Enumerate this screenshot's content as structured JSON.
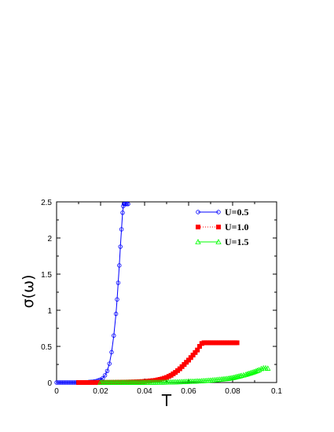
{
  "chart_data": {
    "type": "scatter",
    "title": "",
    "xlabel": "T",
    "ylabel": "σ(ω)",
    "xlim": [
      0,
      0.1
    ],
    "ylim": [
      0,
      2.5
    ],
    "xticks": [
      "0",
      "0.02",
      "0.04",
      "0.06",
      "0.08",
      "0.1"
    ],
    "yticks": [
      "0",
      "0.5",
      "1",
      "1.5",
      "2",
      "2.5"
    ],
    "legend_position": "top-right",
    "series": [
      {
        "name": "U=0.5",
        "color": "#0000ff",
        "marker": "open-circle",
        "line": "solid",
        "x": [
          0.0,
          0.002,
          0.004,
          0.006,
          0.008,
          0.01,
          0.012,
          0.014,
          0.016,
          0.018,
          0.02,
          0.021,
          0.022,
          0.023,
          0.024,
          0.025,
          0.026,
          0.027,
          0.0275,
          0.028,
          0.0285,
          0.029,
          0.0295,
          0.03,
          0.0303,
          0.0306,
          0.031,
          0.0315,
          0.032,
          0.0325
        ],
        "y": [
          0.0,
          0.0,
          0.0,
          0.0,
          0.0,
          0.0,
          0.002,
          0.005,
          0.01,
          0.02,
          0.04,
          0.06,
          0.1,
          0.16,
          0.26,
          0.42,
          0.65,
          0.95,
          1.15,
          1.38,
          1.62,
          1.88,
          2.12,
          2.35,
          2.44,
          2.47,
          2.47,
          2.47,
          2.47,
          2.47
        ]
      },
      {
        "name": "U=1.0",
        "color": "#ff0000",
        "marker": "filled-square",
        "line": "dotted",
        "x": [
          0.01,
          0.015,
          0.02,
          0.025,
          0.03,
          0.035,
          0.04,
          0.045,
          0.048,
          0.05,
          0.052,
          0.054,
          0.056,
          0.058,
          0.06,
          0.062,
          0.064,
          0.065,
          0.066,
          0.067,
          0.068,
          0.07,
          0.072,
          0.074,
          0.076,
          0.078,
          0.08,
          0.082
        ],
        "y": [
          0.0,
          0.0,
          0.001,
          0.002,
          0.004,
          0.008,
          0.015,
          0.03,
          0.05,
          0.07,
          0.1,
          0.14,
          0.19,
          0.25,
          0.31,
          0.38,
          0.45,
          0.5,
          0.54,
          0.55,
          0.55,
          0.55,
          0.55,
          0.55,
          0.55,
          0.55,
          0.55,
          0.55
        ]
      },
      {
        "name": "U=1.5",
        "color": "#00ff00",
        "marker": "open-triangle",
        "line": "solid",
        "x": [
          0.02,
          0.03,
          0.04,
          0.045,
          0.05,
          0.055,
          0.06,
          0.065,
          0.07,
          0.075,
          0.078,
          0.08,
          0.082,
          0.084,
          0.086,
          0.088,
          0.09,
          0.092,
          0.093,
          0.094,
          0.095,
          0.096
        ],
        "y": [
          0.0,
          0.0,
          0.001,
          0.002,
          0.004,
          0.008,
          0.014,
          0.02,
          0.03,
          0.045,
          0.055,
          0.065,
          0.08,
          0.095,
          0.11,
          0.13,
          0.15,
          0.175,
          0.19,
          0.2,
          0.2,
          0.195
        ]
      }
    ]
  }
}
